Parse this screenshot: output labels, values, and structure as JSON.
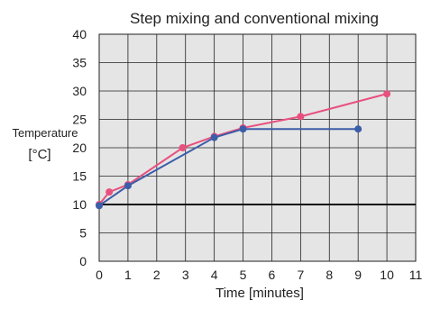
{
  "chart_data": {
    "type": "line",
    "title": "Step mixing and conventional mixing",
    "xlabel": "Time [minutes]",
    "ylabel_line1": "Temperature",
    "ylabel_line2": "[°C]",
    "xlim": [
      0,
      11
    ],
    "ylim": [
      0,
      40
    ],
    "x_ticks": [
      "0",
      "1",
      "2",
      "3",
      "4",
      "5",
      "6",
      "7",
      "8",
      "9",
      "10",
      "11"
    ],
    "y_ticks": [
      "0",
      "5",
      "10",
      "15",
      "20",
      "25",
      "30",
      "35",
      "40"
    ],
    "grid": true,
    "reference_line_y": 10,
    "series": [
      {
        "color": "#e8507e",
        "x": [
          0,
          0.35,
          1,
          2.9,
          4,
          5,
          7,
          10
        ],
        "y": [
          10,
          12.2,
          13.5,
          20,
          22,
          23.5,
          25.5,
          29.5
        ]
      },
      {
        "color": "#3c5ea8",
        "x": [
          0,
          1,
          4,
          5,
          9
        ],
        "y": [
          9.8,
          13.3,
          21.8,
          23.3,
          23.3
        ]
      }
    ],
    "colors": {
      "plot_background": "#e5e5e5",
      "grid": "#222222",
      "reference_line": "#111111"
    }
  }
}
